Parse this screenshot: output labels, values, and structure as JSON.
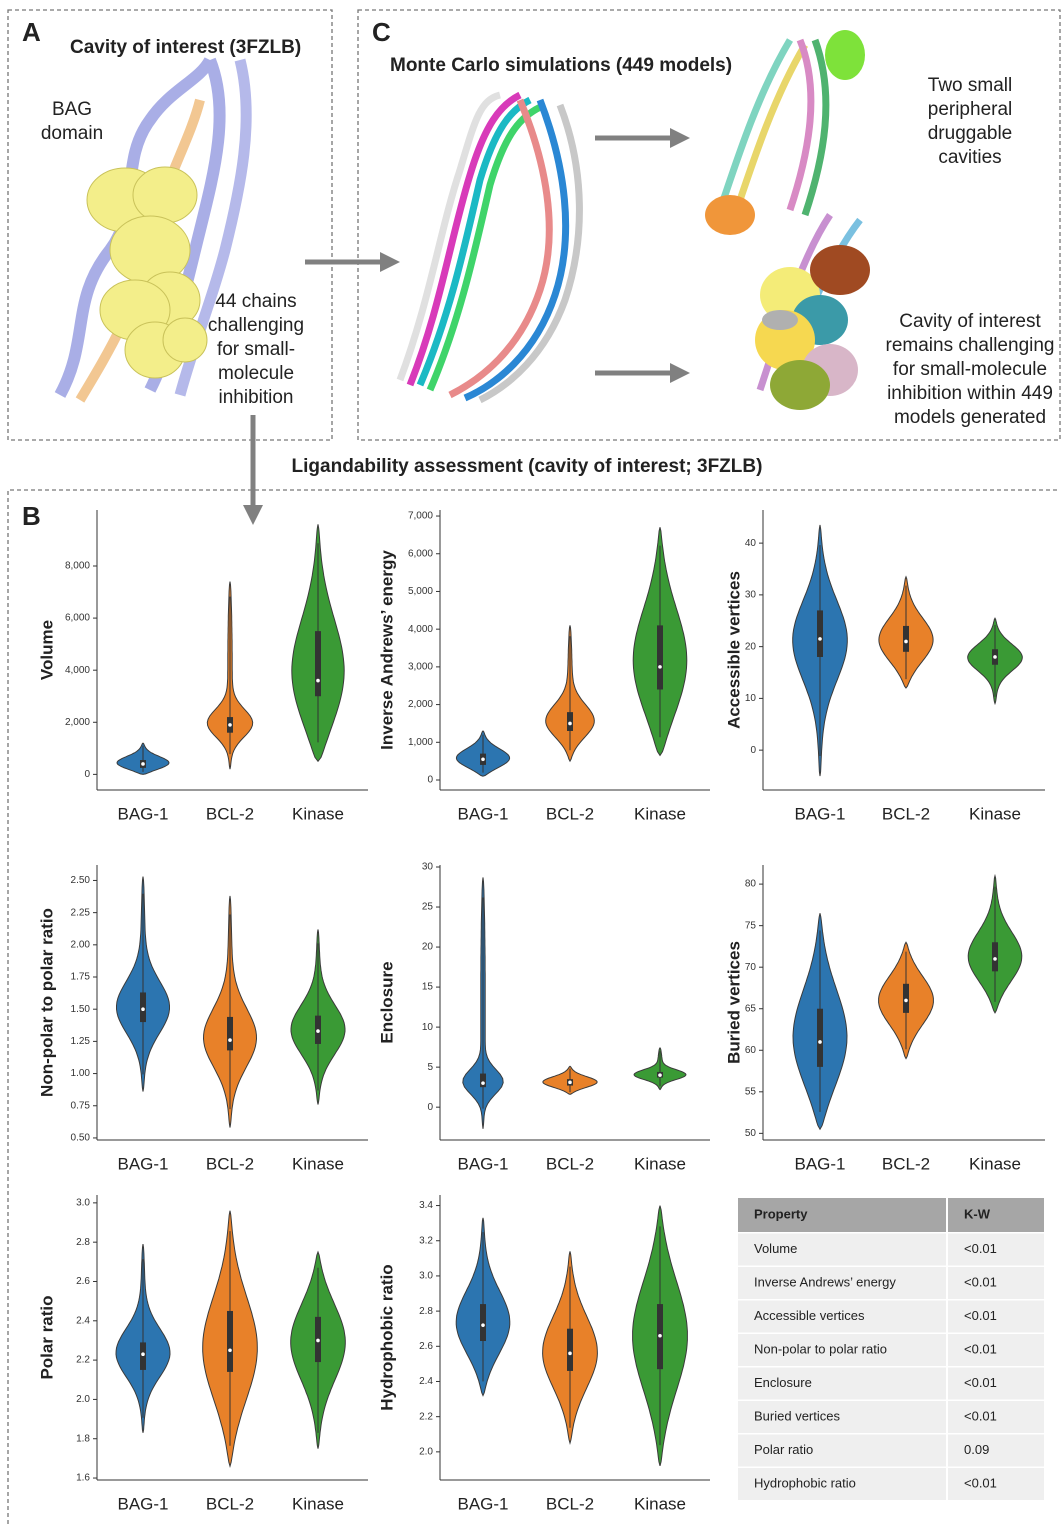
{
  "panel_a": {
    "letter": "A",
    "title": "Cavity of interest (3FZLB)",
    "domain_label": [
      "BAG",
      "domain"
    ],
    "note": [
      "44 chains",
      "challenging",
      "for small-",
      "molecule",
      "inhibition"
    ]
  },
  "panel_c": {
    "letter": "C",
    "title": "Monte Carlo simulations (449 models)",
    "top_note": [
      "Two small",
      "peripheral",
      "druggable",
      "cavities"
    ],
    "bottom_note": [
      "Cavity of interest",
      "remains challenging",
      "for small-molecule",
      "inhibition within 449",
      "models generated"
    ]
  },
  "panel_b": {
    "letter": "B",
    "title": "Ligandability assessment (cavity of interest; 3FZLB)"
  },
  "chart_data": [
    {
      "type": "violin",
      "y_label": "Volume",
      "categories": [
        "BAG-1",
        "BCL-2",
        "Kinase"
      ],
      "colors": [
        "#2c75b0",
        "#e88129",
        "#3a9a35"
      ],
      "ylim": [
        -600,
        10150
      ],
      "yticks": [
        0,
        {
          "value": 2000,
          "label": "2,000"
        },
        {
          "value": 4000,
          "label": "4,000"
        },
        {
          "value": 6000,
          "label": "6,000"
        },
        {
          "value": 8000,
          "label": "8,000"
        }
      ],
      "stats": {
        "min": [
          0,
          200,
          500
        ],
        "q1": [
          250,
          1600,
          3000
        ],
        "median": [
          400,
          1900,
          3600
        ],
        "q3": [
          550,
          2200,
          5500
        ],
        "max": [
          1200,
          7400,
          9600
        ]
      }
    },
    {
      "type": "violin",
      "y_label": "Inverse Andrews’ energy",
      "categories": [
        "BAG-1",
        "BCL-2",
        "Kinase"
      ],
      "colors": [
        "#2c75b0",
        "#e88129",
        "#3a9a35"
      ],
      "ylim": [
        -265,
        7160
      ],
      "yticks": [
        0,
        {
          "value": 1000,
          "label": "1,000"
        },
        {
          "value": 2000,
          "label": "2,000"
        },
        {
          "value": 3000,
          "label": "3,000"
        },
        {
          "value": 4000,
          "label": "4,000"
        },
        {
          "value": 5000,
          "label": "5,000"
        },
        {
          "value": 6000,
          "label": "6,000"
        },
        {
          "value": 7000,
          "label": "7,000"
        }
      ],
      "stats": {
        "min": [
          100,
          500,
          650
        ],
        "q1": [
          400,
          1300,
          2400
        ],
        "median": [
          550,
          1500,
          3000
        ],
        "q3": [
          700,
          1800,
          4100
        ],
        "max": [
          1300,
          4100,
          6700
        ]
      }
    },
    {
      "type": "violin",
      "y_label": "Accessible vertices",
      "categories": [
        "BAG-1",
        "BCL-2",
        "Kinase"
      ],
      "colors": [
        "#2c75b0",
        "#e88129",
        "#3a9a35"
      ],
      "ylim": [
        -7.7,
        46.4
      ],
      "yticks": [
        0,
        10,
        20,
        30,
        40
      ],
      "stats": {
        "min": [
          -5,
          12,
          9
        ],
        "q1": [
          18,
          19,
          16.5
        ],
        "median": [
          21.5,
          21,
          18
        ],
        "q3": [
          27,
          24,
          19.5
        ],
        "max": [
          43.5,
          33.5,
          25.5
        ]
      }
    },
    {
      "type": "violin",
      "y_label": "Non-polar to polar ratio",
      "categories": [
        "BAG-1",
        "BCL-2",
        "Kinase"
      ],
      "colors": [
        "#2c75b0",
        "#e88129",
        "#3a9a35"
      ],
      "ylim": [
        0.484,
        2.62
      ],
      "yticks": [
        {
          "value": 0.5,
          "label": "0.50"
        },
        0.75,
        {
          "value": 1,
          "label": "1.00"
        },
        1.25,
        {
          "value": 1.5,
          "label": "1.50"
        },
        1.75,
        {
          "value": 2,
          "label": "2.00"
        },
        2.25,
        {
          "value": 2.5,
          "label": "2.50"
        }
      ],
      "stats": {
        "min": [
          0.86,
          0.58,
          0.76
        ],
        "q1": [
          1.4,
          1.18,
          1.23
        ],
        "median": [
          1.5,
          1.26,
          1.33
        ],
        "q3": [
          1.63,
          1.44,
          1.45
        ],
        "max": [
          2.53,
          2.38,
          2.12
        ]
      }
    },
    {
      "type": "violin",
      "y_label": "Enclosure",
      "categories": [
        "BAG-1",
        "BCL-2",
        "Kinase"
      ],
      "colors": [
        "#2c75b0",
        "#e88129",
        "#3a9a35"
      ],
      "ylim": [
        -4.1,
        30.25
      ],
      "yticks": [
        0,
        5,
        10,
        15,
        20,
        25,
        30
      ],
      "stats": {
        "min": [
          -2.7,
          1.6,
          2.2
        ],
        "q1": [
          2.5,
          2.7,
          3.7
        ],
        "median": [
          3,
          3.1,
          4
        ],
        "q3": [
          4.2,
          3.5,
          4.4
        ],
        "max": [
          28.7,
          5.1,
          7.4
        ]
      }
    },
    {
      "type": "violin",
      "y_label": "Buried vertices",
      "categories": [
        "BAG-1",
        "BCL-2",
        "Kinase"
      ],
      "colors": [
        "#2c75b0",
        "#e88129",
        "#3a9a35"
      ],
      "ylim": [
        49.2,
        82.3
      ],
      "yticks": [
        50,
        55,
        60,
        65,
        70,
        75,
        80
      ],
      "stats": {
        "min": [
          50.5,
          59,
          64.5
        ],
        "q1": [
          58,
          64.5,
          69.5
        ],
        "median": [
          61,
          66,
          71
        ],
        "q3": [
          65,
          68,
          73
        ],
        "max": [
          76.5,
          73,
          81
        ]
      }
    },
    {
      "type": "violin",
      "y_label": "Polar ratio",
      "categories": [
        "BAG-1",
        "BCL-2",
        "Kinase"
      ],
      "colors": [
        "#2c75b0",
        "#e88129",
        "#3a9a35"
      ],
      "ylim": [
        1.59,
        3.04
      ],
      "yticks": [
        1.6,
        1.8,
        {
          "value": 2,
          "label": "2.0"
        },
        2.2,
        2.4,
        2.6,
        2.8,
        {
          "value": 3,
          "label": "3.0"
        }
      ],
      "stats": {
        "min": [
          1.83,
          1.66,
          1.75
        ],
        "q1": [
          2.15,
          2.14,
          2.19
        ],
        "median": [
          2.23,
          2.25,
          2.3
        ],
        "q3": [
          2.29,
          2.45,
          2.42
        ],
        "max": [
          2.79,
          2.96,
          2.75
        ]
      }
    },
    {
      "type": "violin",
      "y_label": "Hydrophobic ratio",
      "categories": [
        "BAG-1",
        "BCL-2",
        "Kinase"
      ],
      "colors": [
        "#2c75b0",
        "#e88129",
        "#3a9a35"
      ],
      "ylim": [
        1.84,
        3.46
      ],
      "yticks": [
        {
          "value": 2,
          "label": "2.0"
        },
        2.2,
        2.4,
        2.6,
        2.8,
        {
          "value": 3,
          "label": "3.0"
        },
        3.2,
        3.4
      ],
      "stats": {
        "min": [
          2.32,
          2.05,
          1.92
        ],
        "q1": [
          2.63,
          2.46,
          2.47
        ],
        "median": [
          2.72,
          2.56,
          2.66
        ],
        "q3": [
          2.84,
          2.7,
          2.84
        ],
        "max": [
          3.33,
          3.14,
          3.4
        ]
      }
    }
  ],
  "table": {
    "header": [
      "Property",
      "K-W"
    ],
    "rows": [
      [
        "Volume",
        "<0.01"
      ],
      [
        "Inverse Andrews’ energy",
        "<0.01"
      ],
      [
        "Accessible vertices",
        "<0.01"
      ],
      [
        "Non-polar to polar ratio",
        "<0.01"
      ],
      [
        "Enclosure",
        "<0.01"
      ],
      [
        "Buried vertices",
        "<0.01"
      ],
      [
        "Polar ratio",
        "0.09"
      ],
      [
        "Hydrophobic ratio",
        "<0.01"
      ]
    ]
  }
}
